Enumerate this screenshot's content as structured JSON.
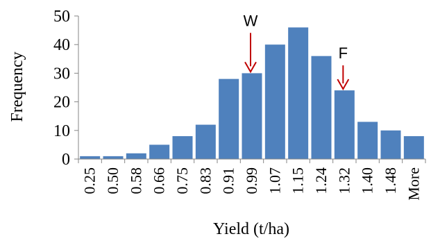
{
  "chart_data": {
    "type": "bar",
    "title": "",
    "xlabel": "Yield (t/ha)",
    "ylabel": "Frequency",
    "categories": [
      "0.25",
      "0.50",
      "0.58",
      "0.66",
      "0.75",
      "0.83",
      "0.91",
      "0.99",
      "1.07",
      "1.15",
      "1.24",
      "1.32",
      "1.40",
      "1.48",
      "More"
    ],
    "values": [
      1,
      1,
      2,
      5,
      8,
      12,
      28,
      30,
      40,
      46,
      36,
      24,
      13,
      10,
      8
    ],
    "ylim": [
      0,
      50
    ],
    "yticks": [
      0,
      10,
      20,
      30,
      40,
      50
    ],
    "grid": false,
    "bar_color": "#4f81bd",
    "annotations": [
      {
        "label": "W",
        "category": "0.99",
        "color": "#c00000"
      },
      {
        "label": "F",
        "category": "1.32",
        "color": "#c00000"
      }
    ]
  }
}
